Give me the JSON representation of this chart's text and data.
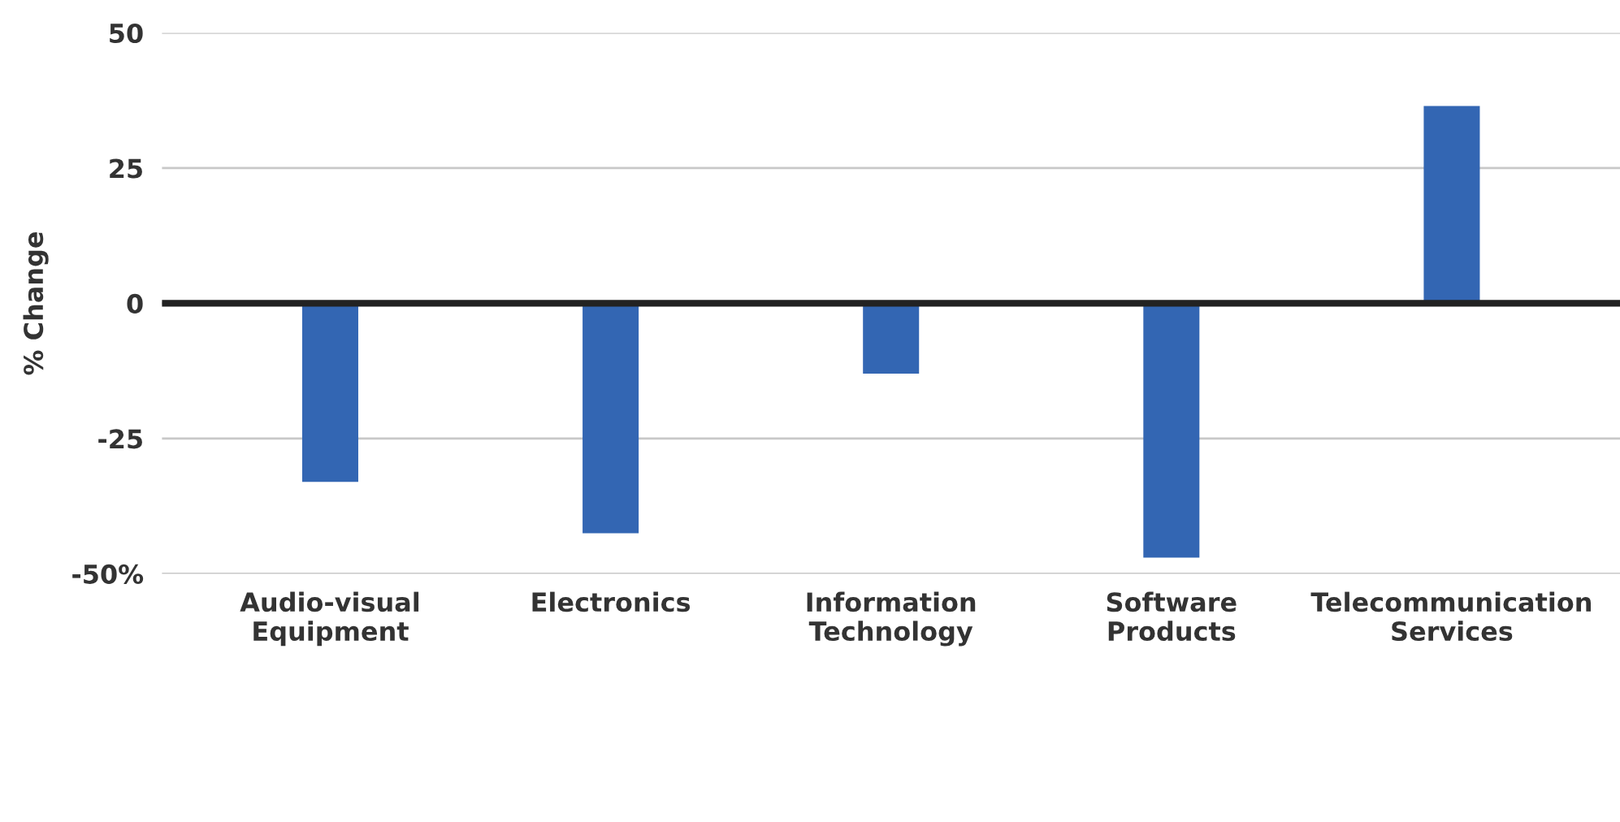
{
  "chart_data": {
    "type": "bar",
    "ylabel": "% Change",
    "categories": [
      "Audio-visual\nEquipment",
      "Electronics",
      "Information\nTechnology",
      "Software\nProducts",
      "Telecommunication\nServices"
    ],
    "values": [
      -33,
      -42.5,
      -13,
      -47,
      36.5
    ],
    "color": "#3366b3",
    "ylim": [
      -50,
      50
    ],
    "yticks": [
      {
        "value": -50,
        "label": "-50%"
      },
      -25,
      0,
      25,
      50
    ],
    "grid": "y",
    "ref_lines": [
      {
        "axis": "y",
        "value": 0,
        "color": "#222222"
      }
    ]
  }
}
